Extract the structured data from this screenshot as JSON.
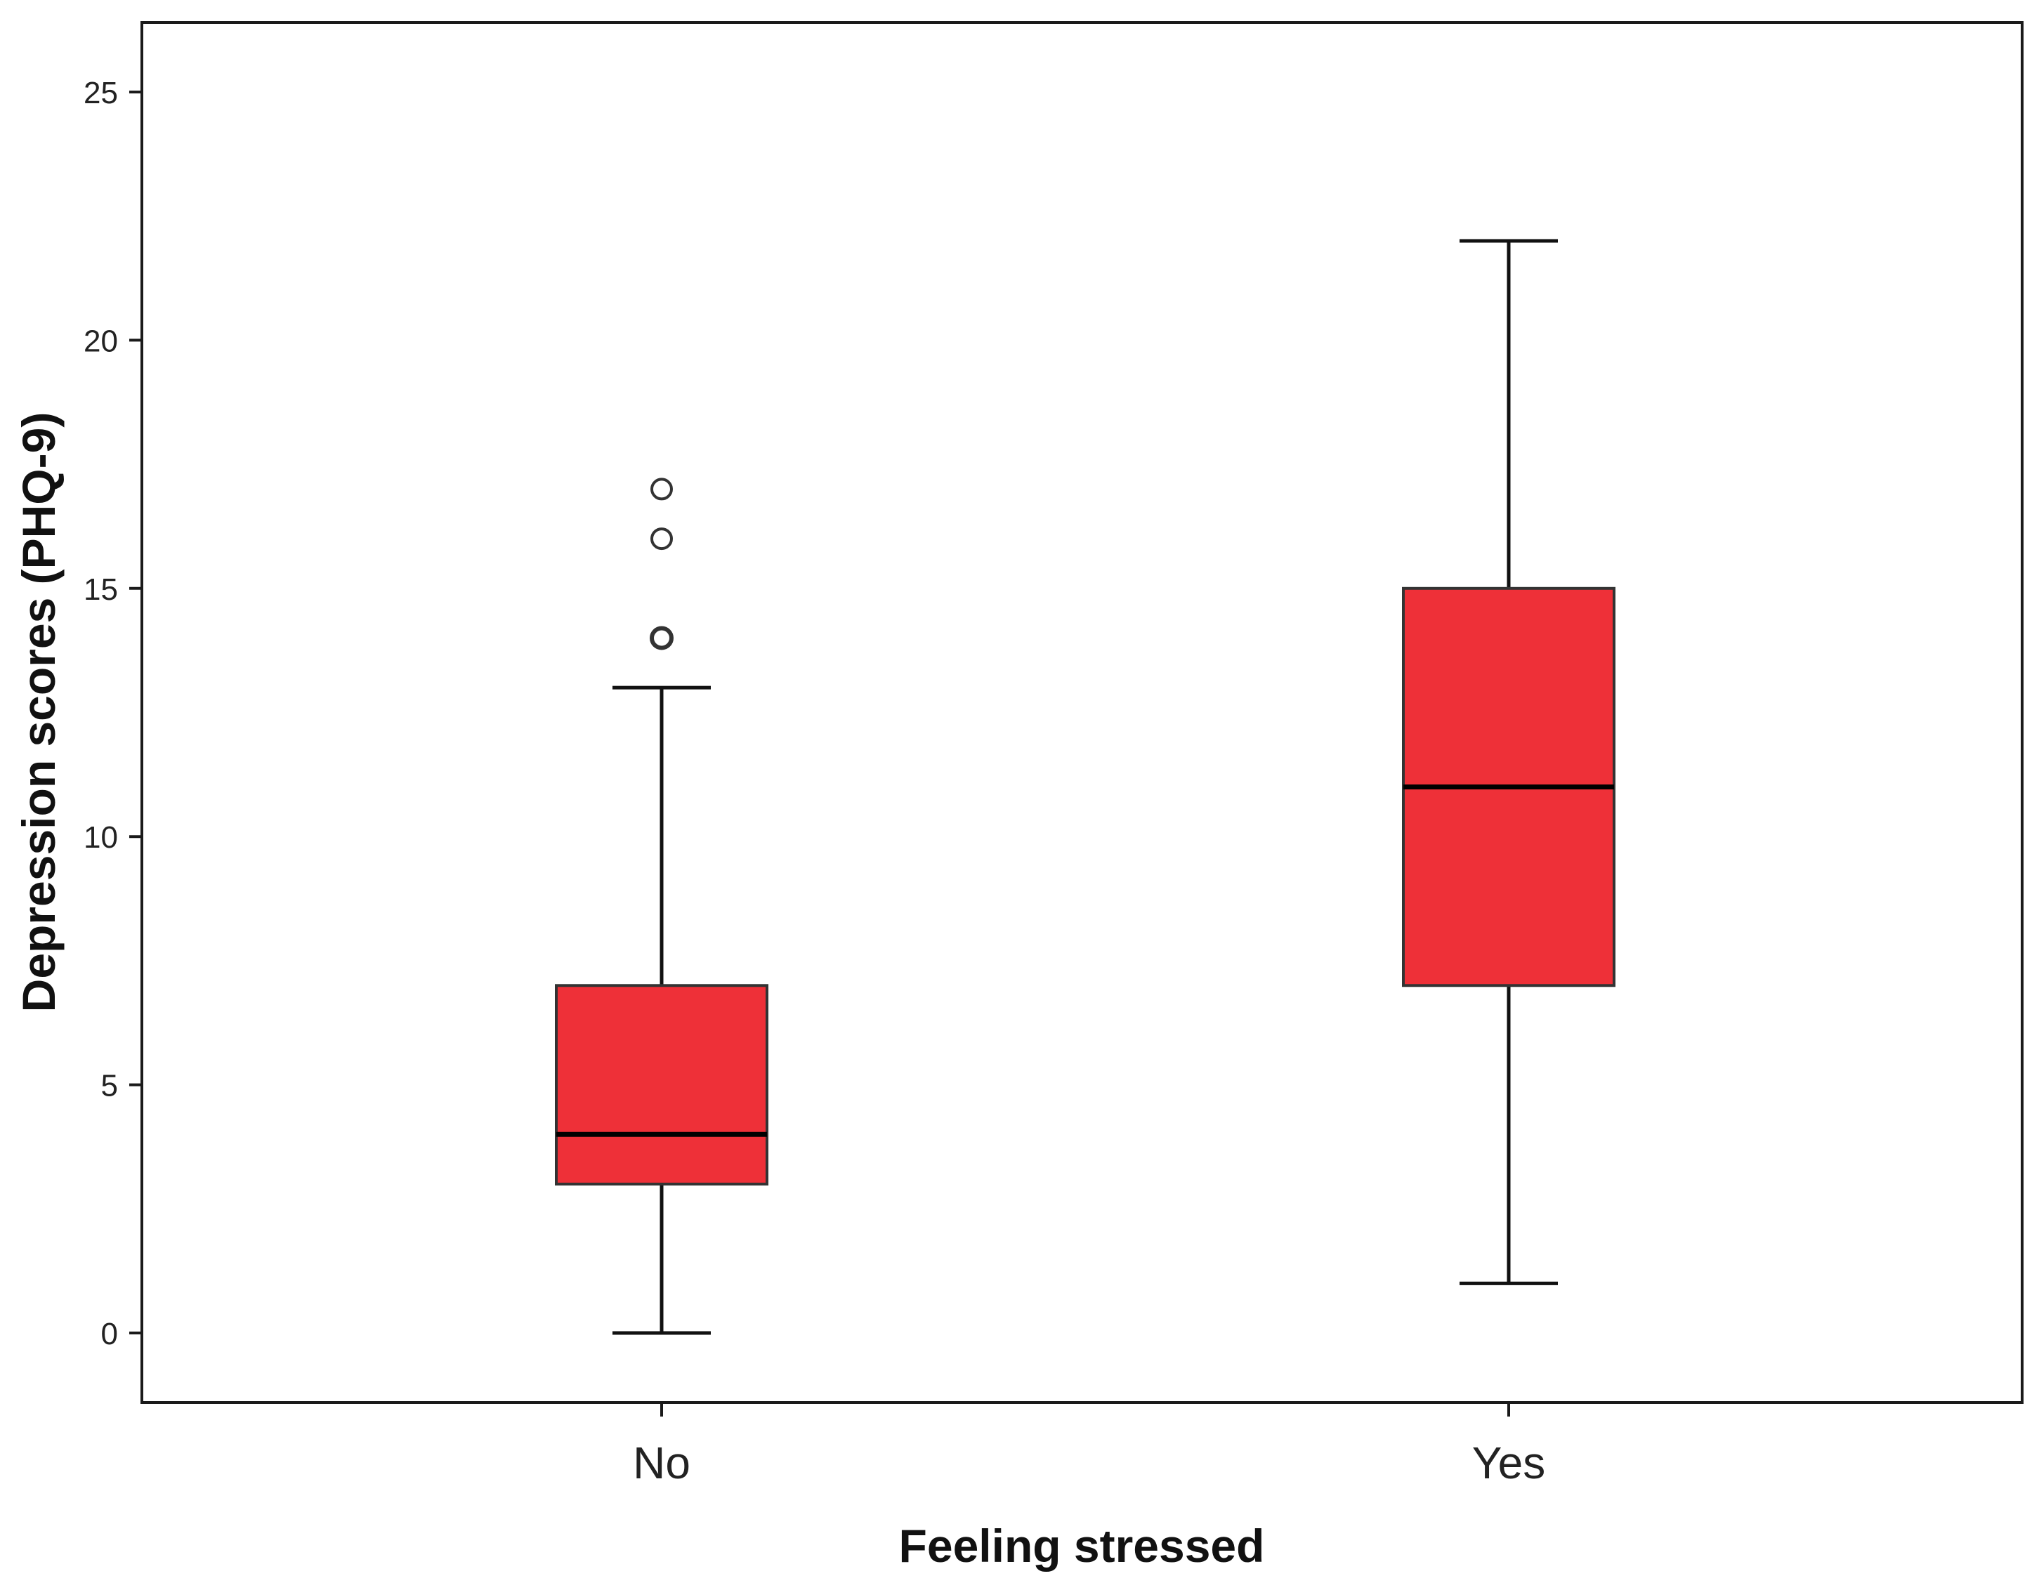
{
  "chart_data": {
    "type": "box",
    "title": "",
    "xlabel": "Feeling stressed",
    "ylabel": "Depression scores (PHQ-9)",
    "ylim": [
      -1.4,
      26.4
    ],
    "yticks": [
      0,
      5,
      10,
      15,
      20,
      25
    ],
    "grid": false,
    "legend": "none",
    "box_color": "#ee3038",
    "edge_color": "#111111",
    "categories": [
      "No",
      "Yes"
    ],
    "boxes": [
      {
        "category": "No",
        "whisker_low": 0,
        "q1": 3,
        "median": 4,
        "q3": 7,
        "whisker_high": 13,
        "outliers": [
          14,
          16,
          17
        ]
      },
      {
        "category": "Yes",
        "whisker_low": 1,
        "q1": 7,
        "median": 11,
        "q3": 15,
        "whisker_high": 22,
        "outliers": []
      }
    ]
  }
}
